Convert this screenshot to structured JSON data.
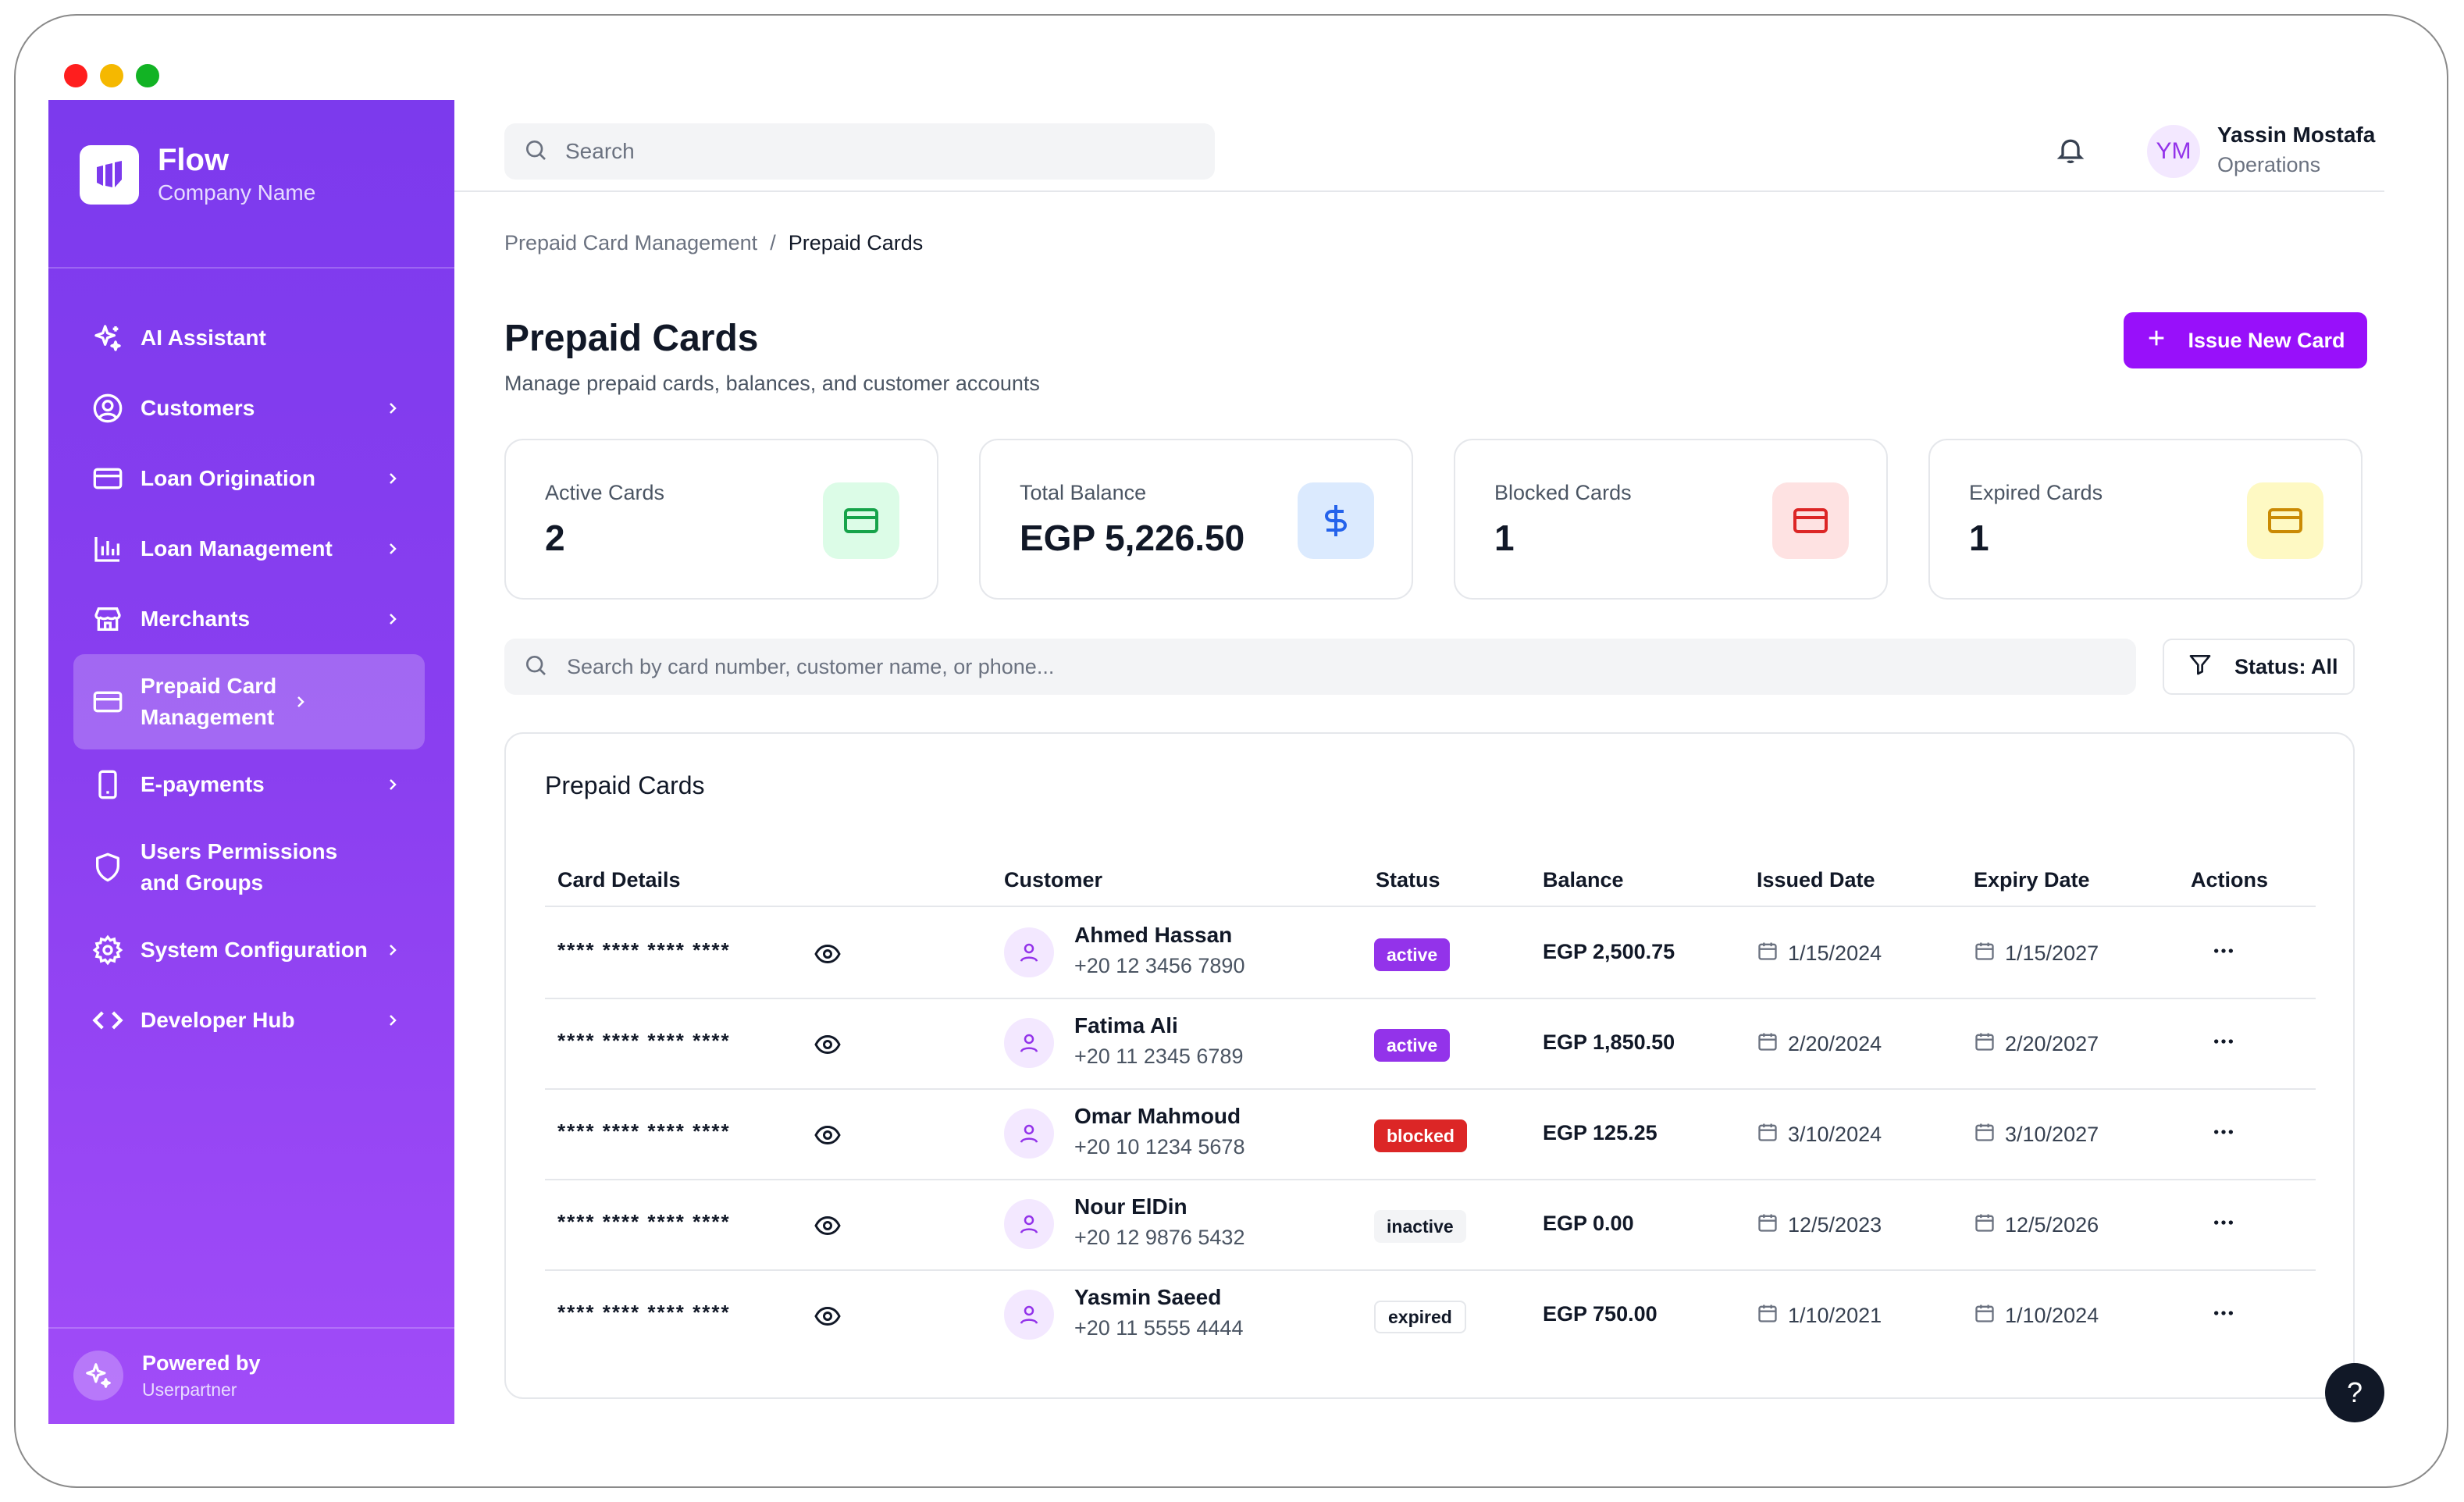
{
  "brand": {
    "name": "Flow",
    "company": "Company Name"
  },
  "sidebar": {
    "items": [
      {
        "label": "AI Assistant",
        "icon": "sparkles-icon",
        "has_chevron": false
      },
      {
        "label": "Customers",
        "icon": "user-circle-icon",
        "has_chevron": true
      },
      {
        "label": "Loan Origination",
        "icon": "credit-card-icon",
        "has_chevron": true
      },
      {
        "label": "Loan Management",
        "icon": "bar-chart-icon",
        "has_chevron": true
      },
      {
        "label": "Merchants",
        "icon": "store-icon",
        "has_chevron": true
      },
      {
        "label": "Prepaid Card Management",
        "icon": "credit-card-icon",
        "has_chevron": true,
        "active": true
      },
      {
        "label": "E-payments",
        "icon": "smartphone-icon",
        "has_chevron": true
      },
      {
        "label": "Users Permissions and Groups",
        "icon": "shield-icon",
        "has_chevron": false
      },
      {
        "label": "System Configuration",
        "icon": "gear-icon",
        "has_chevron": true
      },
      {
        "label": "Developer Hub",
        "icon": "code-icon",
        "has_chevron": true
      }
    ],
    "powered_by": "Powered by",
    "powered_name": "Userpartner"
  },
  "topbar": {
    "search_placeholder": "Search",
    "user_initials": "YM",
    "user_name": "Yassin Mostafa",
    "user_role": "Operations"
  },
  "breadcrumb": {
    "parent": "Prepaid Card Management",
    "separator": "/",
    "current": "Prepaid Cards"
  },
  "page": {
    "title": "Prepaid Cards",
    "subtitle": "Manage prepaid cards, balances, and customer accounts",
    "issue_button": "Issue New Card"
  },
  "stats": [
    {
      "label": "Active Cards",
      "value": "2",
      "icon": "credit-card-icon",
      "color": "#16a34a"
    },
    {
      "label": "Total Balance",
      "value": "EGP 5,226.50",
      "icon": "dollar-icon",
      "color": "#2563eb"
    },
    {
      "label": "Blocked Cards",
      "value": "1",
      "icon": "credit-card-icon",
      "color": "#dc2626"
    },
    {
      "label": "Expired Cards",
      "value": "1",
      "icon": "credit-card-icon",
      "color": "#ca8a04"
    }
  ],
  "filters": {
    "search_placeholder": "Search by card number, customer name, or phone...",
    "status_label": "Status: All"
  },
  "table": {
    "title": "Prepaid Cards",
    "columns": [
      "Card Details",
      "Customer",
      "Status",
      "Balance",
      "Issued Date",
      "Expiry Date",
      "Actions"
    ],
    "rows": [
      {
        "card": "**** **** **** ****",
        "name": "Ahmed Hassan",
        "phone": "+20 12 3456 7890",
        "status": "active",
        "balance": "EGP 2,500.75",
        "issued": "1/15/2024",
        "expiry": "1/15/2027"
      },
      {
        "card": "**** **** **** ****",
        "name": "Fatima Ali",
        "phone": "+20 11 2345 6789",
        "status": "active",
        "balance": "EGP 1,850.50",
        "issued": "2/20/2024",
        "expiry": "2/20/2027"
      },
      {
        "card": "**** **** **** ****",
        "name": "Omar Mahmoud",
        "phone": "+20 10 1234 5678",
        "status": "blocked",
        "balance": "EGP 125.25",
        "issued": "3/10/2024",
        "expiry": "3/10/2027"
      },
      {
        "card": "**** **** **** ****",
        "name": "Nour ElDin",
        "phone": "+20 12 9876 5432",
        "status": "inactive",
        "balance": "EGP 0.00",
        "issued": "12/5/2023",
        "expiry": "12/5/2026"
      },
      {
        "card": "**** **** **** ****",
        "name": "Yasmin Saeed",
        "phone": "+20 11 5555 4444",
        "status": "expired",
        "balance": "EGP 750.00",
        "issued": "1/10/2021",
        "expiry": "1/10/2024"
      }
    ]
  },
  "help": {
    "label": "?"
  }
}
